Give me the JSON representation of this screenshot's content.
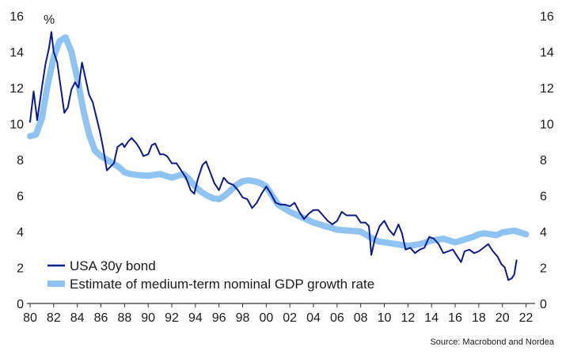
{
  "chart_data": {
    "type": "line",
    "unit_label": "%",
    "source": "Source: Macrobond and Nordea",
    "ylim": [
      0,
      16
    ],
    "y_ticks": [
      0,
      2,
      4,
      6,
      8,
      10,
      12,
      14,
      16
    ],
    "y_tick_labels": [
      "0",
      "2",
      "4",
      "6",
      "8",
      "10",
      "12",
      "14",
      "16"
    ],
    "xlim": [
      1980,
      2022.5
    ],
    "x_ticks": [
      1980,
      1982,
      1984,
      1986,
      1988,
      1990,
      1992,
      1994,
      1996,
      1998,
      2000,
      2002,
      2004,
      2006,
      2008,
      2010,
      2012,
      2014,
      2016,
      2018,
      2020,
      2022
    ],
    "x_tick_labels": [
      "80",
      "82",
      "84",
      "86",
      "88",
      "90",
      "92",
      "94",
      "96",
      "98",
      "00",
      "02",
      "04",
      "06",
      "08",
      "10",
      "12",
      "14",
      "16",
      "18",
      "20",
      "22"
    ],
    "grid": false,
    "legend_position": "bottom-left",
    "colors": {
      "bond": "#0a1a8c",
      "gdp": "#8fc3f2",
      "axis": "#333333"
    },
    "series": [
      {
        "name": "USA 30y bond",
        "x": [
          1980.0,
          1980.3,
          1980.6,
          1981.0,
          1981.3,
          1981.6,
          1981.8,
          1982.0,
          1982.3,
          1982.6,
          1982.9,
          1983.2,
          1983.5,
          1983.8,
          1984.1,
          1984.4,
          1984.7,
          1985.0,
          1985.3,
          1985.6,
          1985.9,
          1986.2,
          1986.5,
          1986.8,
          1987.1,
          1987.4,
          1987.8,
          1988.0,
          1988.3,
          1988.6,
          1989.0,
          1989.3,
          1989.6,
          1990.0,
          1990.3,
          1990.6,
          1991.0,
          1991.3,
          1991.6,
          1992.0,
          1992.4,
          1992.8,
          1993.2,
          1993.6,
          1993.9,
          1994.2,
          1994.6,
          1994.9,
          1995.2,
          1995.6,
          1996.0,
          1996.4,
          1996.8,
          1997.2,
          1997.6,
          1998.0,
          1998.4,
          1998.8,
          1999.2,
          1999.6,
          2000.0,
          2000.4,
          2000.8,
          2001.2,
          2001.6,
          2002.0,
          2002.4,
          2002.8,
          2003.2,
          2003.6,
          2004.0,
          2004.4,
          2004.8,
          2005.2,
          2005.6,
          2006.0,
          2006.4,
          2006.8,
          2007.2,
          2007.6,
          2008.0,
          2008.4,
          2008.7,
          2008.9,
          2009.2,
          2009.6,
          2010.0,
          2010.4,
          2010.8,
          2011.2,
          2011.5,
          2011.8,
          2012.2,
          2012.6,
          2013.0,
          2013.4,
          2013.8,
          2014.2,
          2014.6,
          2015.0,
          2015.4,
          2015.8,
          2016.2,
          2016.5,
          2016.8,
          2017.2,
          2017.6,
          2018.0,
          2018.4,
          2018.8,
          2019.2,
          2019.6,
          2019.9,
          2020.2,
          2020.5,
          2020.8,
          2021.0,
          2021.2
        ],
        "values": [
          10.1,
          11.8,
          10.2,
          12.0,
          13.3,
          14.2,
          15.1,
          14.0,
          13.4,
          12.0,
          10.6,
          10.9,
          11.9,
          12.3,
          12.0,
          13.4,
          12.5,
          11.6,
          11.2,
          10.4,
          9.6,
          8.6,
          7.4,
          7.6,
          7.8,
          8.7,
          8.9,
          8.7,
          9.0,
          9.2,
          8.9,
          8.6,
          8.2,
          8.3,
          8.8,
          8.9,
          8.3,
          8.3,
          8.2,
          7.8,
          7.8,
          7.4,
          7.0,
          6.3,
          6.1,
          6.9,
          7.7,
          7.9,
          7.4,
          6.7,
          6.3,
          7.0,
          6.7,
          6.6,
          6.3,
          5.9,
          5.8,
          5.3,
          5.6,
          6.1,
          6.5,
          6.1,
          5.6,
          5.5,
          5.5,
          5.4,
          5.6,
          5.1,
          4.7,
          5.0,
          5.2,
          5.2,
          4.9,
          4.6,
          4.4,
          4.6,
          5.1,
          4.9,
          4.9,
          4.9,
          4.5,
          4.5,
          4.3,
          2.7,
          3.6,
          4.3,
          4.6,
          4.1,
          3.8,
          4.4,
          3.9,
          3.0,
          3.1,
          2.8,
          3.0,
          3.1,
          3.7,
          3.6,
          3.3,
          2.8,
          2.9,
          3.0,
          2.6,
          2.3,
          2.9,
          3.0,
          2.8,
          2.9,
          3.1,
          3.3,
          2.9,
          2.6,
          2.2,
          2.0,
          1.3,
          1.4,
          1.6,
          2.4
        ]
      },
      {
        "name": "Estimate of medium-term nominal GDP growth rate",
        "x": [
          1980.0,
          1980.5,
          1981.0,
          1981.5,
          1982.0,
          1982.5,
          1983.0,
          1983.5,
          1984.0,
          1984.5,
          1985.0,
          1985.5,
          1986.0,
          1986.5,
          1987.0,
          1987.5,
          1988.0,
          1988.5,
          1989.0,
          1990.0,
          1991.0,
          1992.0,
          1993.0,
          1993.5,
          1994.0,
          1994.5,
          1995.0,
          1995.5,
          1996.0,
          1996.5,
          1997.0,
          1997.5,
          1998.0,
          1998.5,
          1999.0,
          1999.5,
          2000.0,
          2000.5,
          2001.0,
          2002.0,
          2003.0,
          2004.0,
          2005.0,
          2006.0,
          2007.0,
          2008.0,
          2008.5,
          2009.0,
          2009.5,
          2010.0,
          2011.0,
          2012.0,
          2013.0,
          2014.0,
          2015.0,
          2015.5,
          2016.0,
          2016.5,
          2017.0,
          2017.5,
          2018.0,
          2018.5,
          2019.0,
          2019.5,
          2020.0,
          2020.5,
          2021.0,
          2021.5,
          2022.0
        ],
        "values": [
          9.3,
          9.4,
          10.3,
          12.2,
          13.7,
          14.6,
          14.8,
          14.0,
          12.5,
          10.8,
          9.4,
          8.5,
          8.2,
          8.0,
          7.8,
          7.6,
          7.3,
          7.2,
          7.15,
          7.1,
          7.2,
          7.0,
          7.2,
          6.9,
          6.5,
          6.2,
          6.0,
          5.85,
          5.8,
          6.0,
          6.3,
          6.6,
          6.8,
          6.85,
          6.8,
          6.7,
          6.5,
          6.0,
          5.5,
          5.1,
          4.8,
          4.5,
          4.3,
          4.1,
          4.05,
          4.0,
          3.8,
          3.6,
          3.45,
          3.4,
          3.3,
          3.2,
          3.3,
          3.5,
          3.6,
          3.5,
          3.4,
          3.5,
          3.6,
          3.7,
          3.85,
          3.9,
          3.85,
          3.8,
          3.95,
          4.0,
          4.05,
          3.95,
          3.85
        ]
      }
    ]
  }
}
